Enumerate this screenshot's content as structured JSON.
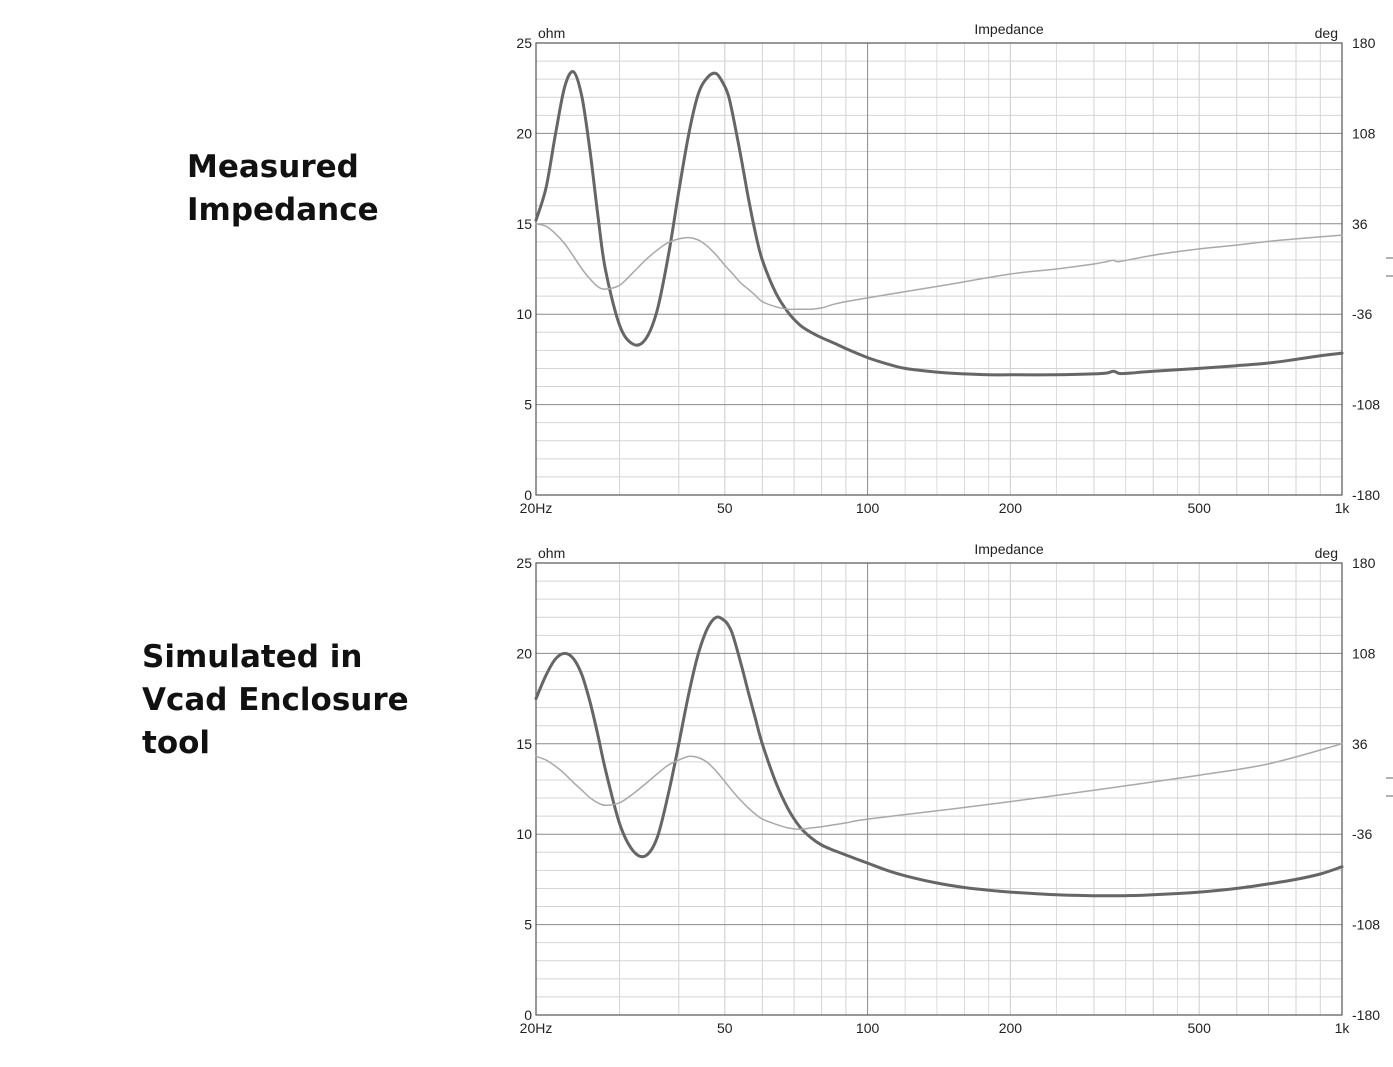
{
  "labels": {
    "measured": "Measured\nImpedance",
    "simulated": "Simulated in\nVcad Enclosure\ntool"
  },
  "colors": {
    "impedance": "#666666",
    "phase": "#a9a9a9",
    "grid_major": "#8a8a8a",
    "grid_minor": "#d4d4d4"
  },
  "chart_data": [
    {
      "type": "line",
      "title": "Impedance",
      "xscale": "log",
      "xlim": [
        20,
        1000
      ],
      "ylim": [
        0,
        25
      ],
      "y2lim": [
        -180,
        180
      ],
      "left_unit": "ohm",
      "right_unit": "deg",
      "x_tick_labels": [
        "20Hz",
        "50",
        "100",
        "200",
        "500",
        "1k"
      ],
      "y_tick_labels": [
        "0",
        "5",
        "10",
        "15",
        "20",
        "25"
      ],
      "y2_tick_labels": [
        "-180",
        "-108",
        "-36",
        "36",
        "108",
        "180"
      ],
      "grid": true,
      "series": [
        {
          "role": "impedance",
          "axis": "left",
          "x": [
            20,
            21,
            22,
            23,
            24,
            25,
            26,
            27,
            28,
            30,
            32,
            34,
            36,
            38,
            40,
            42,
            44,
            46,
            48,
            50,
            51,
            52,
            54,
            56,
            58,
            60,
            64,
            68,
            72,
            76,
            80,
            85,
            90,
            100,
            110,
            120,
            140,
            160,
            180,
            200,
            250,
            300,
            320,
            330,
            340,
            360,
            400,
            500,
            600,
            700,
            800,
            900,
            1000
          ],
          "values": [
            15.2,
            17.0,
            20.0,
            22.6,
            23.4,
            22.0,
            19.0,
            15.5,
            12.5,
            9.4,
            8.35,
            8.6,
            10.2,
            13.2,
            16.8,
            20.0,
            22.2,
            23.1,
            23.3,
            22.6,
            22.0,
            21.0,
            18.8,
            16.5,
            14.5,
            13.0,
            11.2,
            10.1,
            9.4,
            9.0,
            8.7,
            8.4,
            8.1,
            7.6,
            7.25,
            7.0,
            6.8,
            6.7,
            6.65,
            6.65,
            6.65,
            6.7,
            6.75,
            6.85,
            6.72,
            6.75,
            6.85,
            7.0,
            7.15,
            7.3,
            7.5,
            7.7,
            7.85
          ]
        },
        {
          "role": "phase",
          "axis": "right",
          "x": [
            20,
            21,
            22,
            23,
            24,
            25,
            26,
            27,
            28,
            30,
            32,
            34,
            36,
            38,
            40,
            42,
            44,
            46,
            48,
            50,
            52,
            54,
            56,
            58,
            60,
            64,
            68,
            72,
            76,
            80,
            85,
            90,
            100,
            120,
            150,
            200,
            250,
            300,
            320,
            330,
            340,
            400,
            500,
            600,
            700,
            800,
            1000
          ],
          "values": [
            36,
            34,
            28,
            20,
            10,
            0,
            -8,
            -14,
            -16,
            -13,
            -3,
            7,
            15,
            21,
            24,
            25,
            23,
            18,
            11,
            3,
            -4,
            -11,
            -16,
            -21,
            -26,
            -30,
            -32,
            -32,
            -32,
            -31,
            -28,
            -26,
            -23,
            -18,
            -12,
            -4,
            0,
            4,
            6,
            7,
            6,
            11,
            16,
            19,
            22,
            24,
            27
          ]
        }
      ]
    },
    {
      "type": "line",
      "title": "Impedance",
      "xscale": "log",
      "xlim": [
        20,
        1000
      ],
      "ylim": [
        0,
        25
      ],
      "y2lim": [
        -180,
        180
      ],
      "left_unit": "ohm",
      "right_unit": "deg",
      "x_tick_labels": [
        "20Hz",
        "50",
        "100",
        "200",
        "500",
        "1k"
      ],
      "y_tick_labels": [
        "0",
        "5",
        "10",
        "15",
        "20",
        "25"
      ],
      "y2_tick_labels": [
        "-180",
        "-108",
        "-36",
        "36",
        "108",
        "180"
      ],
      "grid": true,
      "series": [
        {
          "role": "impedance",
          "axis": "left",
          "x": [
            20,
            21,
            22,
            23,
            24,
            25,
            26,
            27,
            28,
            30,
            32,
            34,
            36,
            38,
            40,
            42,
            44,
            46,
            48,
            50,
            51,
            52,
            54,
            56,
            58,
            60,
            64,
            68,
            72,
            76,
            80,
            85,
            90,
            100,
            110,
            120,
            140,
            160,
            180,
            200,
            250,
            300,
            350,
            400,
            500,
            600,
            700,
            800,
            900,
            1000
          ],
          "values": [
            17.5,
            18.8,
            19.7,
            20.0,
            19.7,
            18.8,
            17.3,
            15.5,
            13.6,
            10.6,
            9.1,
            8.8,
            9.8,
            12.2,
            15.0,
            17.8,
            20.0,
            21.4,
            22.0,
            21.8,
            21.5,
            21.0,
            19.5,
            17.9,
            16.4,
            15.0,
            12.9,
            11.4,
            10.4,
            9.8,
            9.4,
            9.1,
            8.85,
            8.4,
            8.0,
            7.7,
            7.3,
            7.05,
            6.9,
            6.8,
            6.65,
            6.6,
            6.6,
            6.65,
            6.8,
            7.0,
            7.25,
            7.5,
            7.8,
            8.2
          ]
        },
        {
          "role": "phase",
          "axis": "right",
          "x": [
            20,
            21,
            22,
            23,
            24,
            25,
            26,
            27,
            28,
            30,
            32,
            34,
            36,
            38,
            40,
            42,
            44,
            46,
            48,
            50,
            52,
            54,
            56,
            58,
            60,
            64,
            68,
            72,
            76,
            80,
            90,
            100,
            150,
            200,
            300,
            500,
            700,
            1000
          ],
          "values": [
            26,
            23,
            18,
            12,
            5,
            -1,
            -7,
            -11,
            -13,
            -11,
            -4,
            4,
            12,
            19,
            23,
            26,
            25,
            21,
            14,
            6,
            -2,
            -9,
            -15,
            -20,
            -24,
            -28,
            -31,
            -32,
            -31,
            -30,
            -27,
            -24,
            -16,
            -10,
            -1,
            11,
            20,
            36
          ]
        }
      ]
    }
  ]
}
